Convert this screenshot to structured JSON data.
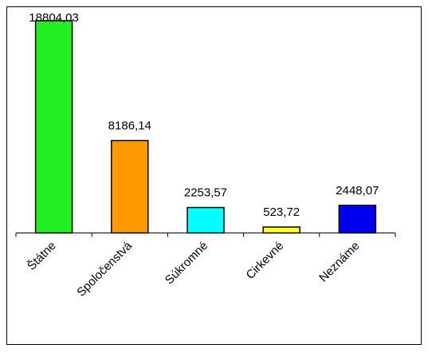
{
  "chart_data": {
    "type": "bar",
    "categories": [
      "Štátne",
      "Spoločenstvá",
      "Súkromné",
      "Cirkevné",
      "Neznáme"
    ],
    "values": [
      18804.03,
      8186.14,
      2253.57,
      523.72,
      2448.07
    ],
    "value_labels": [
      "18804,03",
      "8186,14",
      "2253,57",
      "523,72",
      "2448,07"
    ],
    "colors": [
      "#22ee22",
      "#ff9900",
      "#00ffff",
      "#ffff33",
      "#0000ee"
    ],
    "ylim": [
      0,
      18804.03
    ],
    "grid": false,
    "legend": "none"
  }
}
